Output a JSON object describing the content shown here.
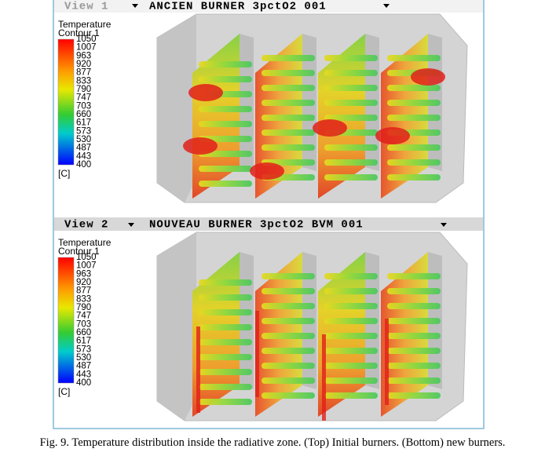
{
  "panels": [
    {
      "view": "View 1",
      "title": "ANCIEN BURNER 3pctO2 001",
      "legend": {
        "title": "Temperature",
        "subtitle": "Contour 1",
        "ticks": [
          1050,
          1007,
          963,
          920,
          877,
          833,
          790,
          747,
          703,
          660,
          617,
          573,
          530,
          487,
          443,
          400
        ],
        "unit": "[C]"
      }
    },
    {
      "view": "View 2",
      "title": "NOUVEAU BURNER 3pctO2 BVM 001",
      "legend": {
        "title": "Temperature",
        "subtitle": "Contour 1",
        "ticks": [
          1050,
          1007,
          963,
          920,
          877,
          833,
          790,
          747,
          703,
          660,
          617,
          573,
          530,
          487,
          443,
          400
        ],
        "unit": "[C]"
      }
    }
  ],
  "caption": "Fig. 9. Temperature distribution inside the radiative zone. (Top) Initial burners. (Bottom) new burners."
}
